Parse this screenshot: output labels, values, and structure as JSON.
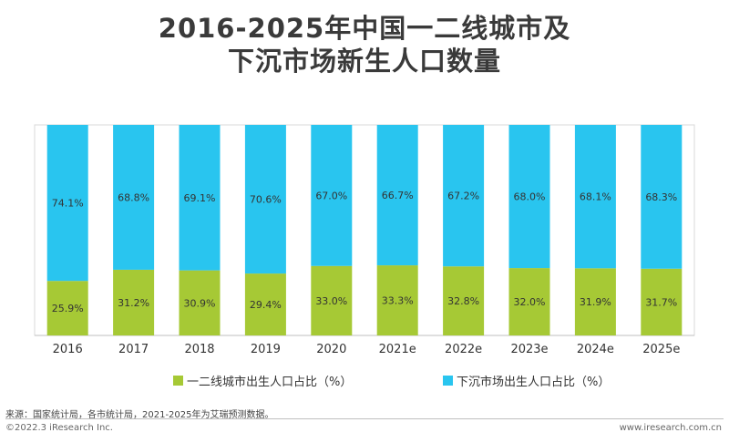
{
  "title_line1": "2016-2025年中国一二线城市及",
  "title_line2": "下沉市场新生人口数量",
  "chart_data": {
    "type": "bar",
    "stacked": true,
    "categories": [
      "2016",
      "2017",
      "2018",
      "2019",
      "2020",
      "2021e",
      "2022e",
      "2023e",
      "2024e",
      "2025e"
    ],
    "series": [
      {
        "name": "一二线城市出生人口占比（%）",
        "color": "#a6c935",
        "values": [
          25.9,
          31.2,
          30.9,
          29.4,
          33.0,
          33.3,
          32.8,
          32.0,
          31.9,
          31.7
        ],
        "labels": [
          "25.9%",
          "31.2%",
          "30.9%",
          "29.4%",
          "33.0%",
          "33.3%",
          "32.8%",
          "32.0%",
          "31.9%",
          "31.7%"
        ]
      },
      {
        "name": "下沉市场出生人口占比（%）",
        "color": "#29c5ef",
        "values": [
          74.1,
          68.8,
          69.1,
          70.6,
          67.0,
          66.7,
          67.2,
          68.0,
          68.1,
          68.3
        ],
        "labels": [
          "74.1%",
          "68.8%",
          "69.1%",
          "70.6%",
          "67.0%",
          "66.7%",
          "67.2%",
          "68.0%",
          "68.1%",
          "68.3%"
        ]
      }
    ],
    "ylim": [
      0,
      100
    ],
    "legend_position": "bottom",
    "grid": false
  },
  "source": "来源：国家统计局，各市统计局，2021-2025年为艾瑞预测数据。",
  "footer_left": "©2022.3 iResearch Inc.",
  "footer_right": "www.iresearch.com.cn"
}
